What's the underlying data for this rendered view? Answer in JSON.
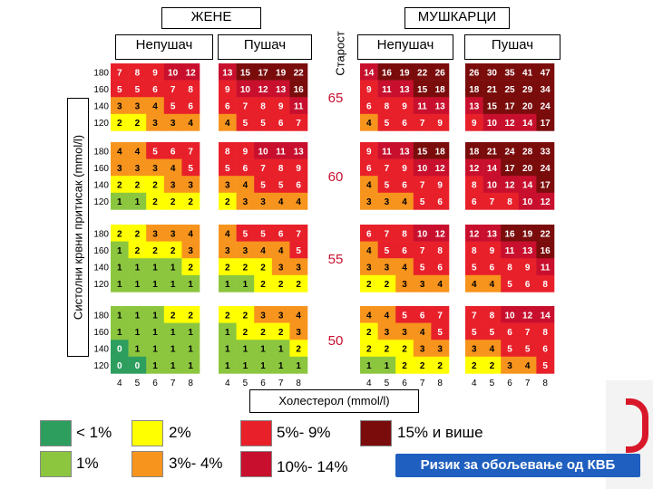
{
  "headers": {
    "women": "ЖЕНЕ",
    "men": "МУШКАРЦИ",
    "age": "Старост"
  },
  "subheaders": {
    "women_nonsmoker": "Непушач",
    "women_smoker": "Пушач",
    "men_nonsmoker": "Непушач",
    "men_smoker": "Пушач"
  },
  "axis": {
    "y_label": "Систолни крвни притисак (mmol/l)",
    "x_label": "Холестерол (mmol/l)"
  },
  "legend": [
    {
      "label": "< 1%",
      "color": "#2e9e5f"
    },
    {
      "label": "1%",
      "color": "#8cc63f"
    },
    {
      "label": "2%",
      "color": "#ffff00"
    },
    {
      "label": "3%- 4%",
      "color": "#f7941d"
    },
    {
      "label": "5%- 9%",
      "color": "#e8202a"
    },
    {
      "label": "10%- 14%",
      "color": "#c8102e"
    },
    {
      "label": "15% и више",
      "color": "#7b0c0c"
    }
  ],
  "risk_title": "Ризик за обољевање од КВБ",
  "chart_data": {
    "type": "heatmap",
    "x_ticks": [
      "4",
      "5",
      "6",
      "7",
      "8"
    ],
    "y_ticks": [
      "180",
      "160",
      "140",
      "120"
    ],
    "ages": [
      "65",
      "60",
      "55",
      "50"
    ],
    "groups": [
      "women_nonsmoker",
      "women_smoker",
      "men_nonsmoker",
      "men_smoker"
    ],
    "colors": {
      "lt1": "#2e9e5f",
      "p1": "#8cc63f",
      "p2": "#ffff00",
      "p34": "#f7941d",
      "p59": "#e8202a",
      "p1014": "#c8102e",
      "p15": "#7b0c0c"
    },
    "grids": [
      [
        [
          [
            "7",
            "8",
            "9",
            "10",
            "12"
          ],
          [
            "5",
            "5",
            "6",
            "7",
            "8"
          ],
          [
            "3",
            "3",
            "4",
            "5",
            "6"
          ],
          [
            "2",
            "2",
            "3",
            "3",
            "4"
          ]
        ],
        [
          [
            "13",
            "15",
            "17",
            "19",
            "22"
          ],
          [
            "9",
            "10",
            "12",
            "13",
            "16"
          ],
          [
            "6",
            "7",
            "8",
            "9",
            "11"
          ],
          [
            "4",
            "5",
            "5",
            "6",
            "7"
          ]
        ],
        [
          [
            "14",
            "16",
            "19",
            "22",
            "26"
          ],
          [
            "9",
            "11",
            "13",
            "15",
            "18"
          ],
          [
            "6",
            "8",
            "9",
            "11",
            "13"
          ],
          [
            "4",
            "5",
            "6",
            "7",
            "9"
          ]
        ],
        [
          [
            "26",
            "30",
            "35",
            "41",
            "47"
          ],
          [
            "18",
            "21",
            "25",
            "29",
            "34"
          ],
          [
            "13",
            "15",
            "17",
            "20",
            "24"
          ],
          [
            "9",
            "10",
            "12",
            "14",
            "17"
          ]
        ]
      ],
      [
        [
          [
            "4",
            "4",
            "5",
            "6",
            "7"
          ],
          [
            "3",
            "3",
            "3",
            "4",
            "5"
          ],
          [
            "2",
            "2",
            "2",
            "3",
            "3"
          ],
          [
            "1",
            "1",
            "2",
            "2",
            "2"
          ]
        ],
        [
          [
            "8",
            "9",
            "10",
            "11",
            "13"
          ],
          [
            "5",
            "6",
            "7",
            "8",
            "9"
          ],
          [
            "3",
            "4",
            "5",
            "5",
            "6"
          ],
          [
            "2",
            "3",
            "3",
            "4",
            "4"
          ]
        ],
        [
          [
            "9",
            "11",
            "13",
            "15",
            "18"
          ],
          [
            "6",
            "7",
            "9",
            "10",
            "12"
          ],
          [
            "4",
            "5",
            "6",
            "7",
            "9"
          ],
          [
            "3",
            "3",
            "4",
            "5",
            "6"
          ]
        ],
        [
          [
            "18",
            "21",
            "24",
            "28",
            "33"
          ],
          [
            "12",
            "14",
            "17",
            "20",
            "24"
          ],
          [
            "8",
            "10",
            "12",
            "14",
            "17"
          ],
          [
            "6",
            "7",
            "8",
            "10",
            "12"
          ]
        ]
      ],
      [
        [
          [
            "2",
            "2",
            "3",
            "3",
            "4"
          ],
          [
            "1",
            "2",
            "2",
            "2",
            "3"
          ],
          [
            "1",
            "1",
            "1",
            "1",
            "2"
          ],
          [
            "1",
            "1",
            "1",
            "1",
            "1"
          ]
        ],
        [
          [
            "4",
            "5",
            "5",
            "6",
            "7"
          ],
          [
            "3",
            "3",
            "4",
            "4",
            "5"
          ],
          [
            "2",
            "2",
            "2",
            "3",
            "3"
          ],
          [
            "1",
            "1",
            "2",
            "2",
            "2"
          ]
        ],
        [
          [
            "6",
            "7",
            "8",
            "10",
            "12"
          ],
          [
            "4",
            "5",
            "6",
            "7",
            "8"
          ],
          [
            "3",
            "3",
            "4",
            "5",
            "6"
          ],
          [
            "2",
            "2",
            "3",
            "3",
            "4"
          ]
        ],
        [
          [
            "12",
            "13",
            "16",
            "19",
            "22"
          ],
          [
            "8",
            "9",
            "11",
            "13",
            "16"
          ],
          [
            "5",
            "6",
            "8",
            "9",
            "11"
          ],
          [
            "4",
            "4",
            "5",
            "6",
            "8"
          ]
        ]
      ],
      [
        [
          [
            "1",
            "1",
            "1",
            "2",
            "2"
          ],
          [
            "1",
            "1",
            "1",
            "1",
            "1"
          ],
          [
            "0",
            "1",
            "1",
            "1",
            "1"
          ],
          [
            "0",
            "0",
            "1",
            "1",
            "1"
          ]
        ],
        [
          [
            "2",
            "2",
            "3",
            "3",
            "4"
          ],
          [
            "1",
            "2",
            "2",
            "2",
            "3"
          ],
          [
            "1",
            "1",
            "1",
            "1",
            "2"
          ],
          [
            "1",
            "1",
            "1",
            "1",
            "1"
          ]
        ],
        [
          [
            "4",
            "4",
            "5",
            "6",
            "7"
          ],
          [
            "2",
            "3",
            "3",
            "4",
            "5"
          ],
          [
            "2",
            "2",
            "2",
            "3",
            "3"
          ],
          [
            "1",
            "1",
            "2",
            "2",
            "2"
          ]
        ],
        [
          [
            "7",
            "8",
            "10",
            "12",
            "14"
          ],
          [
            "5",
            "5",
            "6",
            "7",
            "8"
          ],
          [
            "3",
            "4",
            "5",
            "5",
            "6"
          ],
          [
            "2",
            "2",
            "3",
            "4",
            "5"
          ]
        ]
      ]
    ]
  }
}
